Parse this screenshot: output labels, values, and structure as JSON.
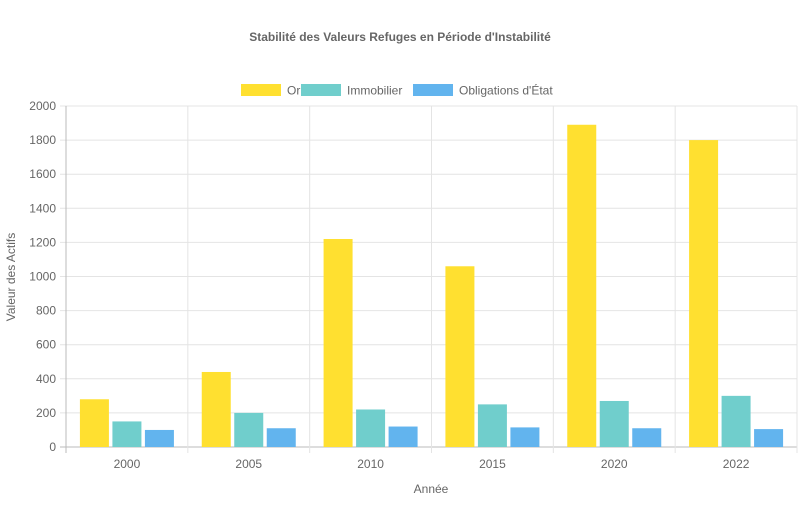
{
  "chart_data": {
    "type": "bar",
    "title": "Stabilité des Valeurs Refuges en Période d'Instabilité",
    "xlabel": "Année",
    "ylabel": "Valeur des Actifs",
    "categories": [
      "2000",
      "2005",
      "2010",
      "2015",
      "2020",
      "2022"
    ],
    "ylim": [
      0,
      2000
    ],
    "yticks": [
      0,
      200,
      400,
      600,
      800,
      1000,
      1200,
      1400,
      1600,
      1800,
      2000
    ],
    "grid": true,
    "legend_position": "top",
    "series": [
      {
        "name": "Or",
        "color": "#FFE030",
        "values": [
          280,
          440,
          1220,
          1060,
          1890,
          1800
        ]
      },
      {
        "name": "Immobilier",
        "color": "#70CECC",
        "values": [
          150,
          200,
          220,
          250,
          270,
          300
        ]
      },
      {
        "name": "Obligations d'État",
        "color": "#62B4EE",
        "values": [
          100,
          110,
          120,
          115,
          110,
          105
        ]
      }
    ]
  }
}
